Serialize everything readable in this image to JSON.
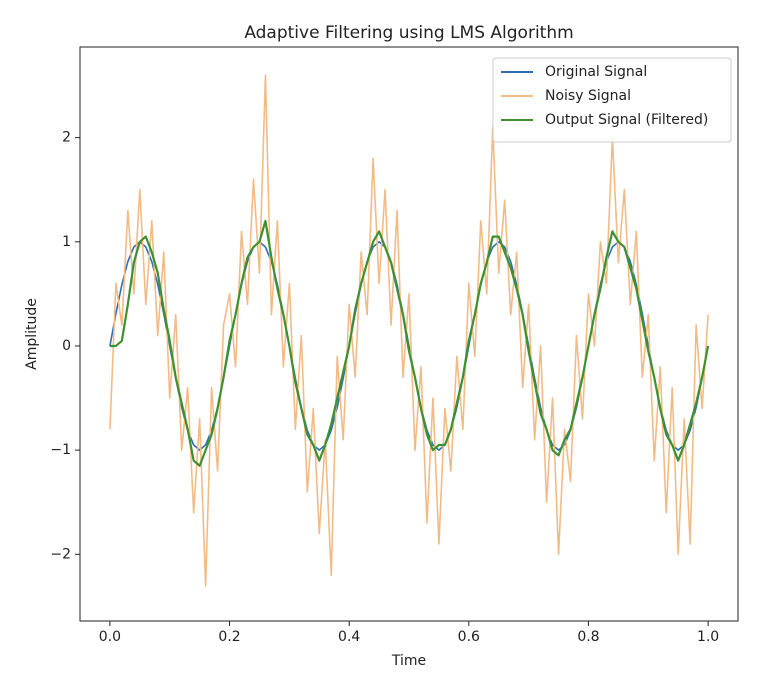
{
  "chart_data": {
    "type": "line",
    "title": "Adaptive Filtering using LMS Algorithm",
    "x_label": "Time",
    "y_label": "Amplitude",
    "x": [
      0,
      0.01,
      0.02,
      0.03,
      0.04,
      0.05,
      0.06,
      0.07,
      0.08,
      0.09,
      0.1,
      0.11,
      0.12,
      0.13,
      0.14,
      0.15,
      0.16,
      0.17,
      0.18,
      0.19,
      0.2,
      0.21,
      0.22,
      0.23,
      0.24,
      0.25,
      0.26,
      0.27,
      0.28,
      0.29,
      0.3,
      0.31,
      0.32,
      0.33,
      0.34,
      0.35,
      0.36,
      0.37,
      0.38,
      0.39,
      0.4,
      0.41,
      0.42,
      0.43,
      0.44,
      0.45,
      0.46,
      0.47,
      0.48,
      0.49,
      0.5,
      0.51,
      0.52,
      0.53,
      0.54,
      0.55,
      0.56,
      0.57,
      0.58,
      0.59,
      0.6,
      0.61,
      0.62,
      0.63,
      0.64,
      0.65,
      0.66,
      0.67,
      0.68,
      0.69,
      0.7,
      0.71,
      0.72,
      0.73,
      0.74,
      0.75,
      0.76,
      0.77,
      0.78,
      0.79,
      0.8,
      0.81,
      0.82,
      0.83,
      0.84,
      0.85,
      0.86,
      0.87,
      0.88,
      0.89,
      0.9,
      0.91,
      0.92,
      0.93,
      0.94,
      0.95,
      0.96,
      0.97,
      0.98,
      0.99,
      1
    ],
    "series": [
      {
        "name": "Original Signal",
        "color": "#2f6fb0",
        "values": [
          0,
          0.31,
          0.59,
          0.81,
          0.95,
          1,
          0.95,
          0.81,
          0.59,
          0.31,
          0,
          -0.31,
          -0.59,
          -0.81,
          -0.95,
          -1,
          -0.95,
          -0.81,
          -0.59,
          -0.31,
          0,
          0.31,
          0.59,
          0.81,
          0.95,
          1,
          0.95,
          0.81,
          0.59,
          0.31,
          0,
          -0.31,
          -0.59,
          -0.81,
          -0.95,
          -1,
          -0.95,
          -0.81,
          -0.59,
          -0.31,
          0,
          0.31,
          0.59,
          0.81,
          0.95,
          1,
          0.95,
          0.81,
          0.59,
          0.31,
          0,
          -0.31,
          -0.59,
          -0.81,
          -0.95,
          -1,
          -0.95,
          -0.81,
          -0.59,
          -0.31,
          0,
          0.31,
          0.59,
          0.81,
          0.95,
          1,
          0.95,
          0.81,
          0.59,
          0.31,
          0,
          -0.31,
          -0.59,
          -0.81,
          -0.95,
          -1,
          -0.95,
          -0.81,
          -0.59,
          -0.31,
          0,
          0.31,
          0.59,
          0.81,
          0.95,
          1,
          0.95,
          0.81,
          0.59,
          0.31,
          0,
          -0.31,
          -0.59,
          -0.81,
          -0.95,
          -1,
          -0.95,
          -0.81,
          -0.59,
          -0.31,
          0
        ]
      },
      {
        "name": "Noisy Signal",
        "color": "#f2bb86",
        "values": [
          -0.8,
          0.6,
          0.2,
          1.3,
          0.5,
          1.5,
          0.4,
          1.2,
          0.1,
          0.9,
          -0.5,
          0.3,
          -1.0,
          -0.4,
          -1.6,
          -0.7,
          -2.3,
          -0.4,
          -1.2,
          0.2,
          0.5,
          -0.2,
          1.1,
          0.4,
          1.6,
          0.7,
          2.6,
          0.3,
          1.2,
          -0.2,
          0.6,
          -0.8,
          0.1,
          -1.4,
          -0.6,
          -1.8,
          -0.9,
          -2.2,
          -0.1,
          -0.9,
          0.4,
          -0.3,
          0.9,
          0.3,
          1.8,
          0.6,
          1.5,
          0.2,
          1.3,
          -0.3,
          0.5,
          -1.0,
          -0.2,
          -1.7,
          -0.5,
          -1.9,
          -0.6,
          -1.2,
          -0.1,
          -0.8,
          0.6,
          -0.1,
          1.2,
          0.5,
          2.1,
          0.7,
          1.4,
          0.3,
          0.9,
          -0.4,
          0.4,
          -0.9,
          0.0,
          -1.5,
          -0.5,
          -2.0,
          -0.8,
          -1.3,
          0.1,
          -0.7,
          0.5,
          0.0,
          1.0,
          0.6,
          2.0,
          0.8,
          1.5,
          0.4,
          1.1,
          -0.3,
          0.3,
          -1.1,
          -0.2,
          -1.6,
          -0.4,
          -2.0,
          -0.7,
          -1.9,
          0.2,
          -0.6,
          0.3
        ]
      },
      {
        "name": "Output Signal (Filtered)",
        "color": "#3d9130",
        "values": [
          0,
          0,
          0.05,
          0.4,
          0.8,
          1.0,
          1.05,
          0.9,
          0.7,
          0.35,
          0.05,
          -0.3,
          -0.55,
          -0.8,
          -1.1,
          -1.15,
          -1.0,
          -0.85,
          -0.6,
          -0.3,
          0.05,
          0.3,
          0.6,
          0.85,
          0.95,
          1.0,
          1.2,
          0.85,
          0.55,
          0.3,
          0.0,
          -0.35,
          -0.6,
          -0.85,
          -0.95,
          -1.1,
          -0.95,
          -0.75,
          -0.5,
          -0.25,
          0.0,
          0.35,
          0.6,
          0.8,
          1.0,
          1.1,
          0.95,
          0.8,
          0.55,
          0.3,
          -0.05,
          -0.3,
          -0.6,
          -0.85,
          -1.0,
          -0.95,
          -0.95,
          -0.8,
          -0.55,
          -0.3,
          0.05,
          0.3,
          0.6,
          0.8,
          1.05,
          1.05,
          0.9,
          0.75,
          0.55,
          0.3,
          -0.05,
          -0.35,
          -0.65,
          -0.8,
          -1.0,
          -1.05,
          -0.9,
          -0.8,
          -0.55,
          -0.3,
          0.0,
          0.3,
          0.55,
          0.85,
          1.1,
          1.0,
          0.95,
          0.75,
          0.55,
          0.25,
          -0.05,
          -0.3,
          -0.6,
          -0.85,
          -0.95,
          -1.1,
          -0.95,
          -0.75,
          -0.55,
          -0.3,
          0.0
        ]
      }
    ],
    "xlim": [
      -0.05,
      1.05
    ],
    "ylim": [
      -2.64,
      2.87
    ],
    "xticks": [
      {
        "value": 0,
        "label": "0.0"
      },
      {
        "value": 0.2,
        "label": "0.2"
      },
      {
        "value": 0.4,
        "label": "0.4"
      },
      {
        "value": 0.6,
        "label": "0.6"
      },
      {
        "value": 0.8,
        "label": "0.8"
      },
      {
        "value": 1,
        "label": "1.0"
      }
    ],
    "yticks": [
      {
        "value": -2,
        "label": "−2"
      },
      {
        "value": -1,
        "label": "−1"
      },
      0,
      1,
      2
    ],
    "legend": "upper right"
  }
}
